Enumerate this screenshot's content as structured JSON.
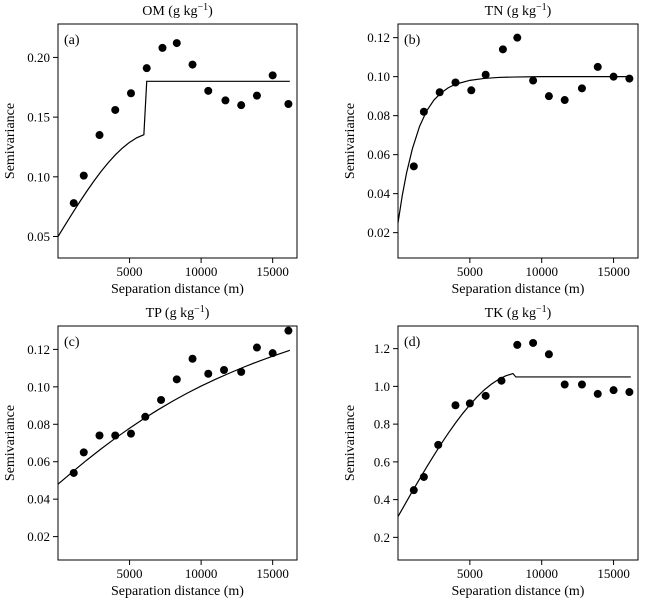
{
  "figure": {
    "background": "#ffffff",
    "ink_color": "#000000"
  },
  "chart_data": [
    {
      "type": "scatter",
      "panel": "(a)",
      "title": "OM (g kg",
      "title_sup": "−1",
      "title_suffix": ")",
      "xlabel": "Separation distance (m)",
      "ylabel": "Semivariance",
      "xlim": [
        0,
        16700
      ],
      "ylim": [
        0.032,
        0.228
      ],
      "xticks": [
        5000,
        10000,
        15000
      ],
      "yticks": [
        0.05,
        0.1,
        0.15,
        0.2
      ],
      "ytick_labels": [
        "0.05",
        "0.10",
        "0.15",
        "0.20"
      ],
      "grid": false,
      "legend": "none",
      "points": {
        "x": [
          1100,
          1800,
          2900,
          4000,
          5100,
          6200,
          7300,
          8300,
          9400,
          10500,
          11700,
          12800,
          13900,
          15000,
          16100
        ],
        "y": [
          0.078,
          0.101,
          0.135,
          0.156,
          0.17,
          0.191,
          0.208,
          0.212,
          0.194,
          0.172,
          0.164,
          0.16,
          0.168,
          0.185,
          0.161
        ]
      },
      "model_line": {
        "x": [
          0,
          500,
          1000,
          1500,
          2000,
          2500,
          3000,
          3500,
          4000,
          4500,
          5000,
          5500,
          6000,
          6200,
          7000,
          8000,
          10000,
          12000,
          14000,
          16200
        ],
        "y": [
          0.05,
          0.0597,
          0.0693,
          0.0787,
          0.0877,
          0.0963,
          0.1043,
          0.1117,
          0.1183,
          0.1241,
          0.1289,
          0.1327,
          0.1353,
          0.18,
          0.18,
          0.18,
          0.18,
          0.18,
          0.18,
          0.18
        ]
      }
    },
    {
      "type": "scatter",
      "panel": "(b)",
      "title": "TN (g kg",
      "title_sup": "−1",
      "title_suffix": ")",
      "xlabel": "Separation distance (m)",
      "ylabel": "Semivariance",
      "xlim": [
        0,
        16700
      ],
      "ylim": [
        0.007,
        0.127
      ],
      "xticks": [
        5000,
        10000,
        15000
      ],
      "yticks": [
        0.02,
        0.04,
        0.06,
        0.08,
        0.1,
        0.12
      ],
      "ytick_labels": [
        "0.02",
        "0.04",
        "0.06",
        "0.08",
        "0.10",
        "0.12"
      ],
      "grid": false,
      "legend": "none",
      "points": {
        "x": [
          1100,
          1800,
          2900,
          4000,
          5100,
          6100,
          7300,
          8300,
          9400,
          10500,
          11600,
          12800,
          13900,
          15000,
          16100
        ],
        "y": [
          0.054,
          0.082,
          0.092,
          0.097,
          0.093,
          0.101,
          0.114,
          0.12,
          0.098,
          0.09,
          0.088,
          0.094,
          0.105,
          0.1,
          0.099
        ]
      },
      "model_line": {
        "x": [
          0,
          300,
          600,
          1000,
          1500,
          2000,
          2500,
          3000,
          3500,
          4000,
          5000,
          6000,
          7000,
          8000,
          10000,
          12000,
          14000,
          16200
        ],
        "y": [
          0.025,
          0.0392,
          0.0508,
          0.063,
          0.0745,
          0.0825,
          0.088,
          0.0917,
          0.0943,
          0.0961,
          0.0981,
          0.0991,
          0.0996,
          0.0998,
          0.1,
          0.1,
          0.1,
          0.1
        ]
      }
    },
    {
      "type": "scatter",
      "panel": "(c)",
      "title": "TP (g kg",
      "title_sup": "−1",
      "title_suffix": ")",
      "xlabel": "Separation distance (m)",
      "ylabel": "Semivariance",
      "xlim": [
        0,
        16700
      ],
      "ylim": [
        0.0075,
        0.1325
      ],
      "xticks": [
        5000,
        10000,
        15000
      ],
      "yticks": [
        0.02,
        0.04,
        0.06,
        0.08,
        0.1,
        0.12
      ],
      "ytick_labels": [
        "0.02",
        "0.04",
        "0.06",
        "0.08",
        "0.10",
        "0.12"
      ],
      "grid": false,
      "legend": "none",
      "points": {
        "x": [
          1100,
          1800,
          2900,
          4000,
          5100,
          6100,
          7200,
          8300,
          9400,
          10500,
          11600,
          12800,
          13900,
          15000,
          16100
        ],
        "y": [
          0.054,
          0.065,
          0.074,
          0.074,
          0.075,
          0.084,
          0.093,
          0.104,
          0.115,
          0.107,
          0.109,
          0.108,
          0.121,
          0.118,
          0.13
        ]
      },
      "model_line": {
        "x": [
          0,
          1000,
          2000,
          3000,
          4000,
          5000,
          6000,
          7000,
          8000,
          9000,
          10000,
          11000,
          12000,
          13000,
          14000,
          15000,
          16200
        ],
        "y": [
          0.048,
          0.0545,
          0.0608,
          0.0668,
          0.0725,
          0.0779,
          0.083,
          0.0878,
          0.0923,
          0.0965,
          0.1004,
          0.104,
          0.1074,
          0.1106,
          0.1136,
          0.1164,
          0.1195
        ]
      }
    },
    {
      "type": "scatter",
      "panel": "(d)",
      "title": "TK (g kg",
      "title_sup": "−1",
      "title_suffix": ")",
      "xlabel": "Separation distance (m)",
      "ylabel": "Semivariance",
      "xlim": [
        0,
        16700
      ],
      "ylim": [
        0.08,
        1.32
      ],
      "xticks": [
        5000,
        10000,
        15000
      ],
      "yticks": [
        0.2,
        0.4,
        0.6,
        0.8,
        1.0,
        1.2
      ],
      "ytick_labels": [
        "0.2",
        "0.4",
        "0.6",
        "0.8",
        "1.0",
        "1.2"
      ],
      "grid": false,
      "legend": "none",
      "points": {
        "x": [
          1100,
          1800,
          2800,
          4000,
          5000,
          6100,
          7200,
          8300,
          9400,
          10500,
          11600,
          12800,
          13900,
          15000,
          16100
        ],
        "y": [
          0.45,
          0.52,
          0.69,
          0.9,
          0.91,
          0.95,
          1.03,
          1.22,
          1.23,
          1.17,
          1.01,
          1.01,
          0.96,
          0.98,
          0.97
        ]
      },
      "model_line": {
        "x": [
          0,
          500,
          1000,
          1500,
          2000,
          2500,
          3000,
          3500,
          4000,
          4500,
          5000,
          5500,
          6000,
          6500,
          7000,
          7500,
          8000,
          8200,
          10000,
          12000,
          14000,
          16200
        ],
        "y": [
          0.31,
          0.377,
          0.444,
          0.509,
          0.573,
          0.635,
          0.695,
          0.752,
          0.806,
          0.856,
          0.902,
          0.944,
          0.981,
          1.012,
          1.037,
          1.056,
          1.068,
          1.05,
          1.05,
          1.05,
          1.05,
          1.05
        ]
      }
    }
  ]
}
